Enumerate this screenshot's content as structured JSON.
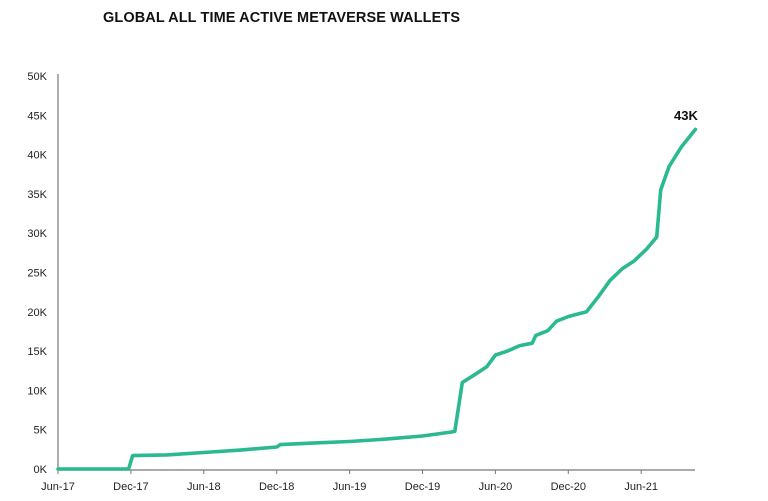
{
  "chart_data": {
    "type": "line",
    "title": "GLOBAL ALL TIME ACTIVE METAVERSE WALLETS",
    "xlabel": "",
    "ylabel": "",
    "x_ticks": [
      "Jun-17",
      "Dec-17",
      "Jun-18",
      "Dec-18",
      "Jun-19",
      "Dec-19",
      "Jun-20",
      "Dec-20",
      "Jun-21"
    ],
    "x_range": [
      "2017-06-01",
      "2021-10-15"
    ],
    "y_ticks": [
      "0K",
      "5K",
      "10K",
      "15K",
      "20K",
      "25K",
      "30K",
      "35K",
      "40K",
      "45K",
      "50K"
    ],
    "ylim": [
      0,
      50000
    ],
    "grid": false,
    "line_color": "#2bb991",
    "annotation": "43K",
    "series": [
      {
        "x": [
          "2017-06-01",
          "2017-11-25",
          "2017-12-05",
          "2018-03-01",
          "2018-06-01",
          "2018-09-01",
          "2018-12-01",
          "2018-12-10",
          "2019-03-01",
          "2019-06-01",
          "2019-09-01",
          "2019-12-01",
          "2020-02-10",
          "2020-02-20",
          "2020-03-10",
          "2020-04-10",
          "2020-05-10",
          "2020-06-01",
          "2020-07-01",
          "2020-08-01",
          "2020-09-01",
          "2020-09-10",
          "2020-10-10",
          "2020-11-01",
          "2020-12-01",
          "2021-01-15",
          "2021-02-15",
          "2021-03-15",
          "2021-04-15",
          "2021-05-15",
          "2021-06-15",
          "2021-07-10",
          "2021-07-20",
          "2021-08-10",
          "2021-09-10",
          "2021-10-15"
        ],
        "y": [
          0,
          0,
          1700,
          1800,
          2100,
          2400,
          2800,
          3100,
          3300,
          3500,
          3800,
          4200,
          4700,
          4800,
          11000,
          12000,
          13000,
          14500,
          15000,
          15700,
          16000,
          17000,
          17600,
          18800,
          19400,
          20000,
          22000,
          24000,
          25500,
          26500,
          28000,
          29500,
          35500,
          38500,
          41000,
          43200
        ]
      }
    ]
  }
}
